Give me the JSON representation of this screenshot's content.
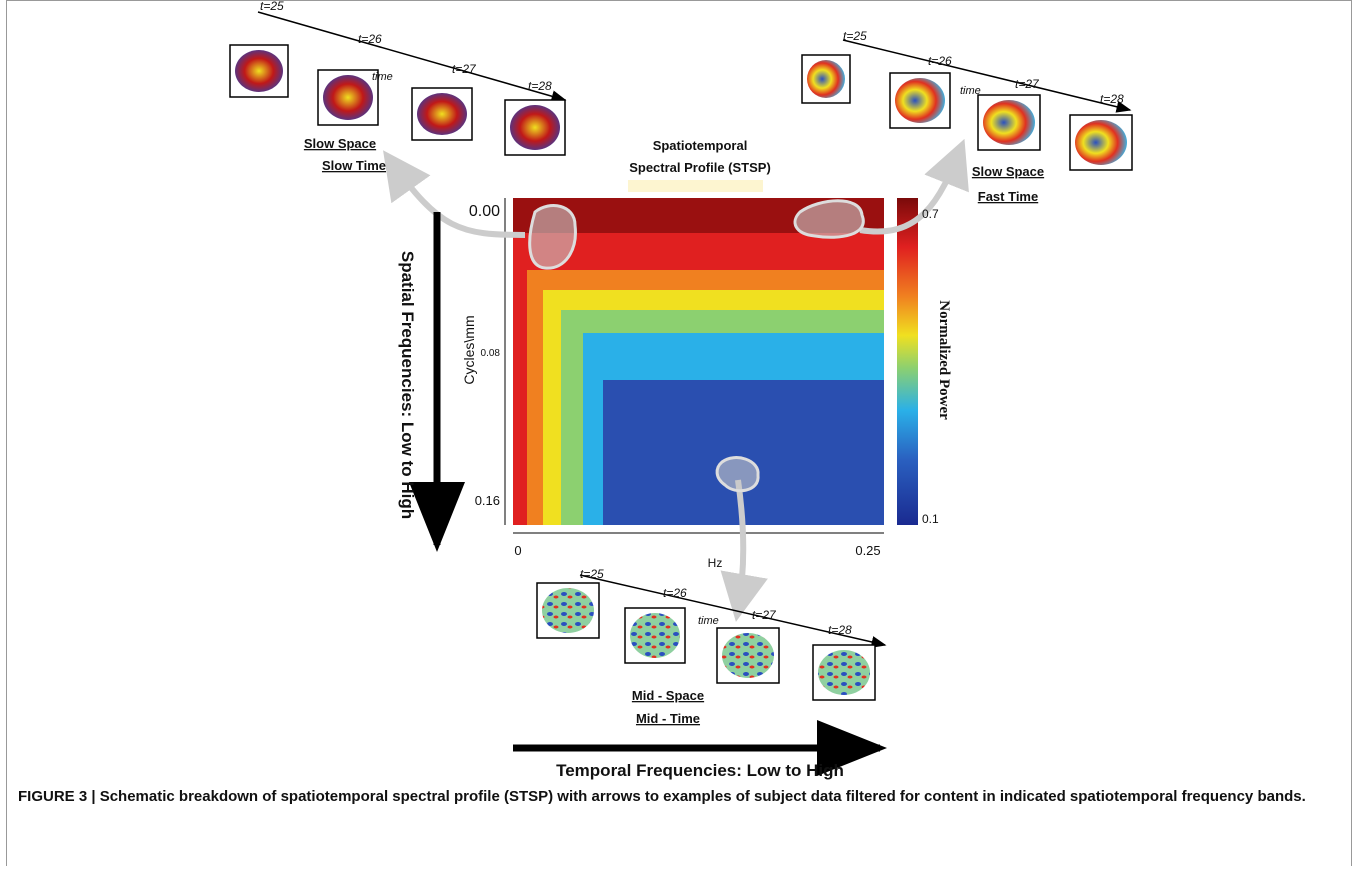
{
  "figure": {
    "title": [
      "Spatiotemporal",
      "Spectral Profile (STSP)"
    ],
    "heatmap": {
      "y_label": "Cycles\\mm",
      "x_label": "Hz",
      "y_ticks": [
        "0.00",
        "0.08",
        "0.16"
      ],
      "x_ticks": [
        "0",
        "0.25"
      ],
      "colorbar_label": "Normalized Power",
      "colorbar_ticks": [
        "0.7",
        "0.1"
      ]
    },
    "axes": {
      "vertical": "Spatial Frequencies: Low to High",
      "horizontal": "Temporal Frequencies: Low to High"
    },
    "panels": [
      {
        "time_labels": [
          "t=25",
          "t=26",
          "t=27",
          "t=28"
        ],
        "axis_label": "time",
        "caption": [
          "Slow  Space",
          "Slow Time"
        ]
      },
      {
        "time_labels": [
          "t=25",
          "t=26",
          "t=27",
          "t=28"
        ],
        "axis_label": "time",
        "caption": [
          "Slow  Space",
          "Fast Time"
        ]
      },
      {
        "time_labels": [
          "t=25",
          "t=26",
          "t=27",
          "t=28"
        ],
        "axis_label": "time",
        "caption": [
          "Mid - Space",
          "Mid - Time"
        ]
      }
    ]
  },
  "caption": "FIGURE 3 | Schematic breakdown of spatiotemporal spectral profile (STSP) with arrows to examples of subject data filtered for content in indicated spatiotemporal frequency bands."
}
